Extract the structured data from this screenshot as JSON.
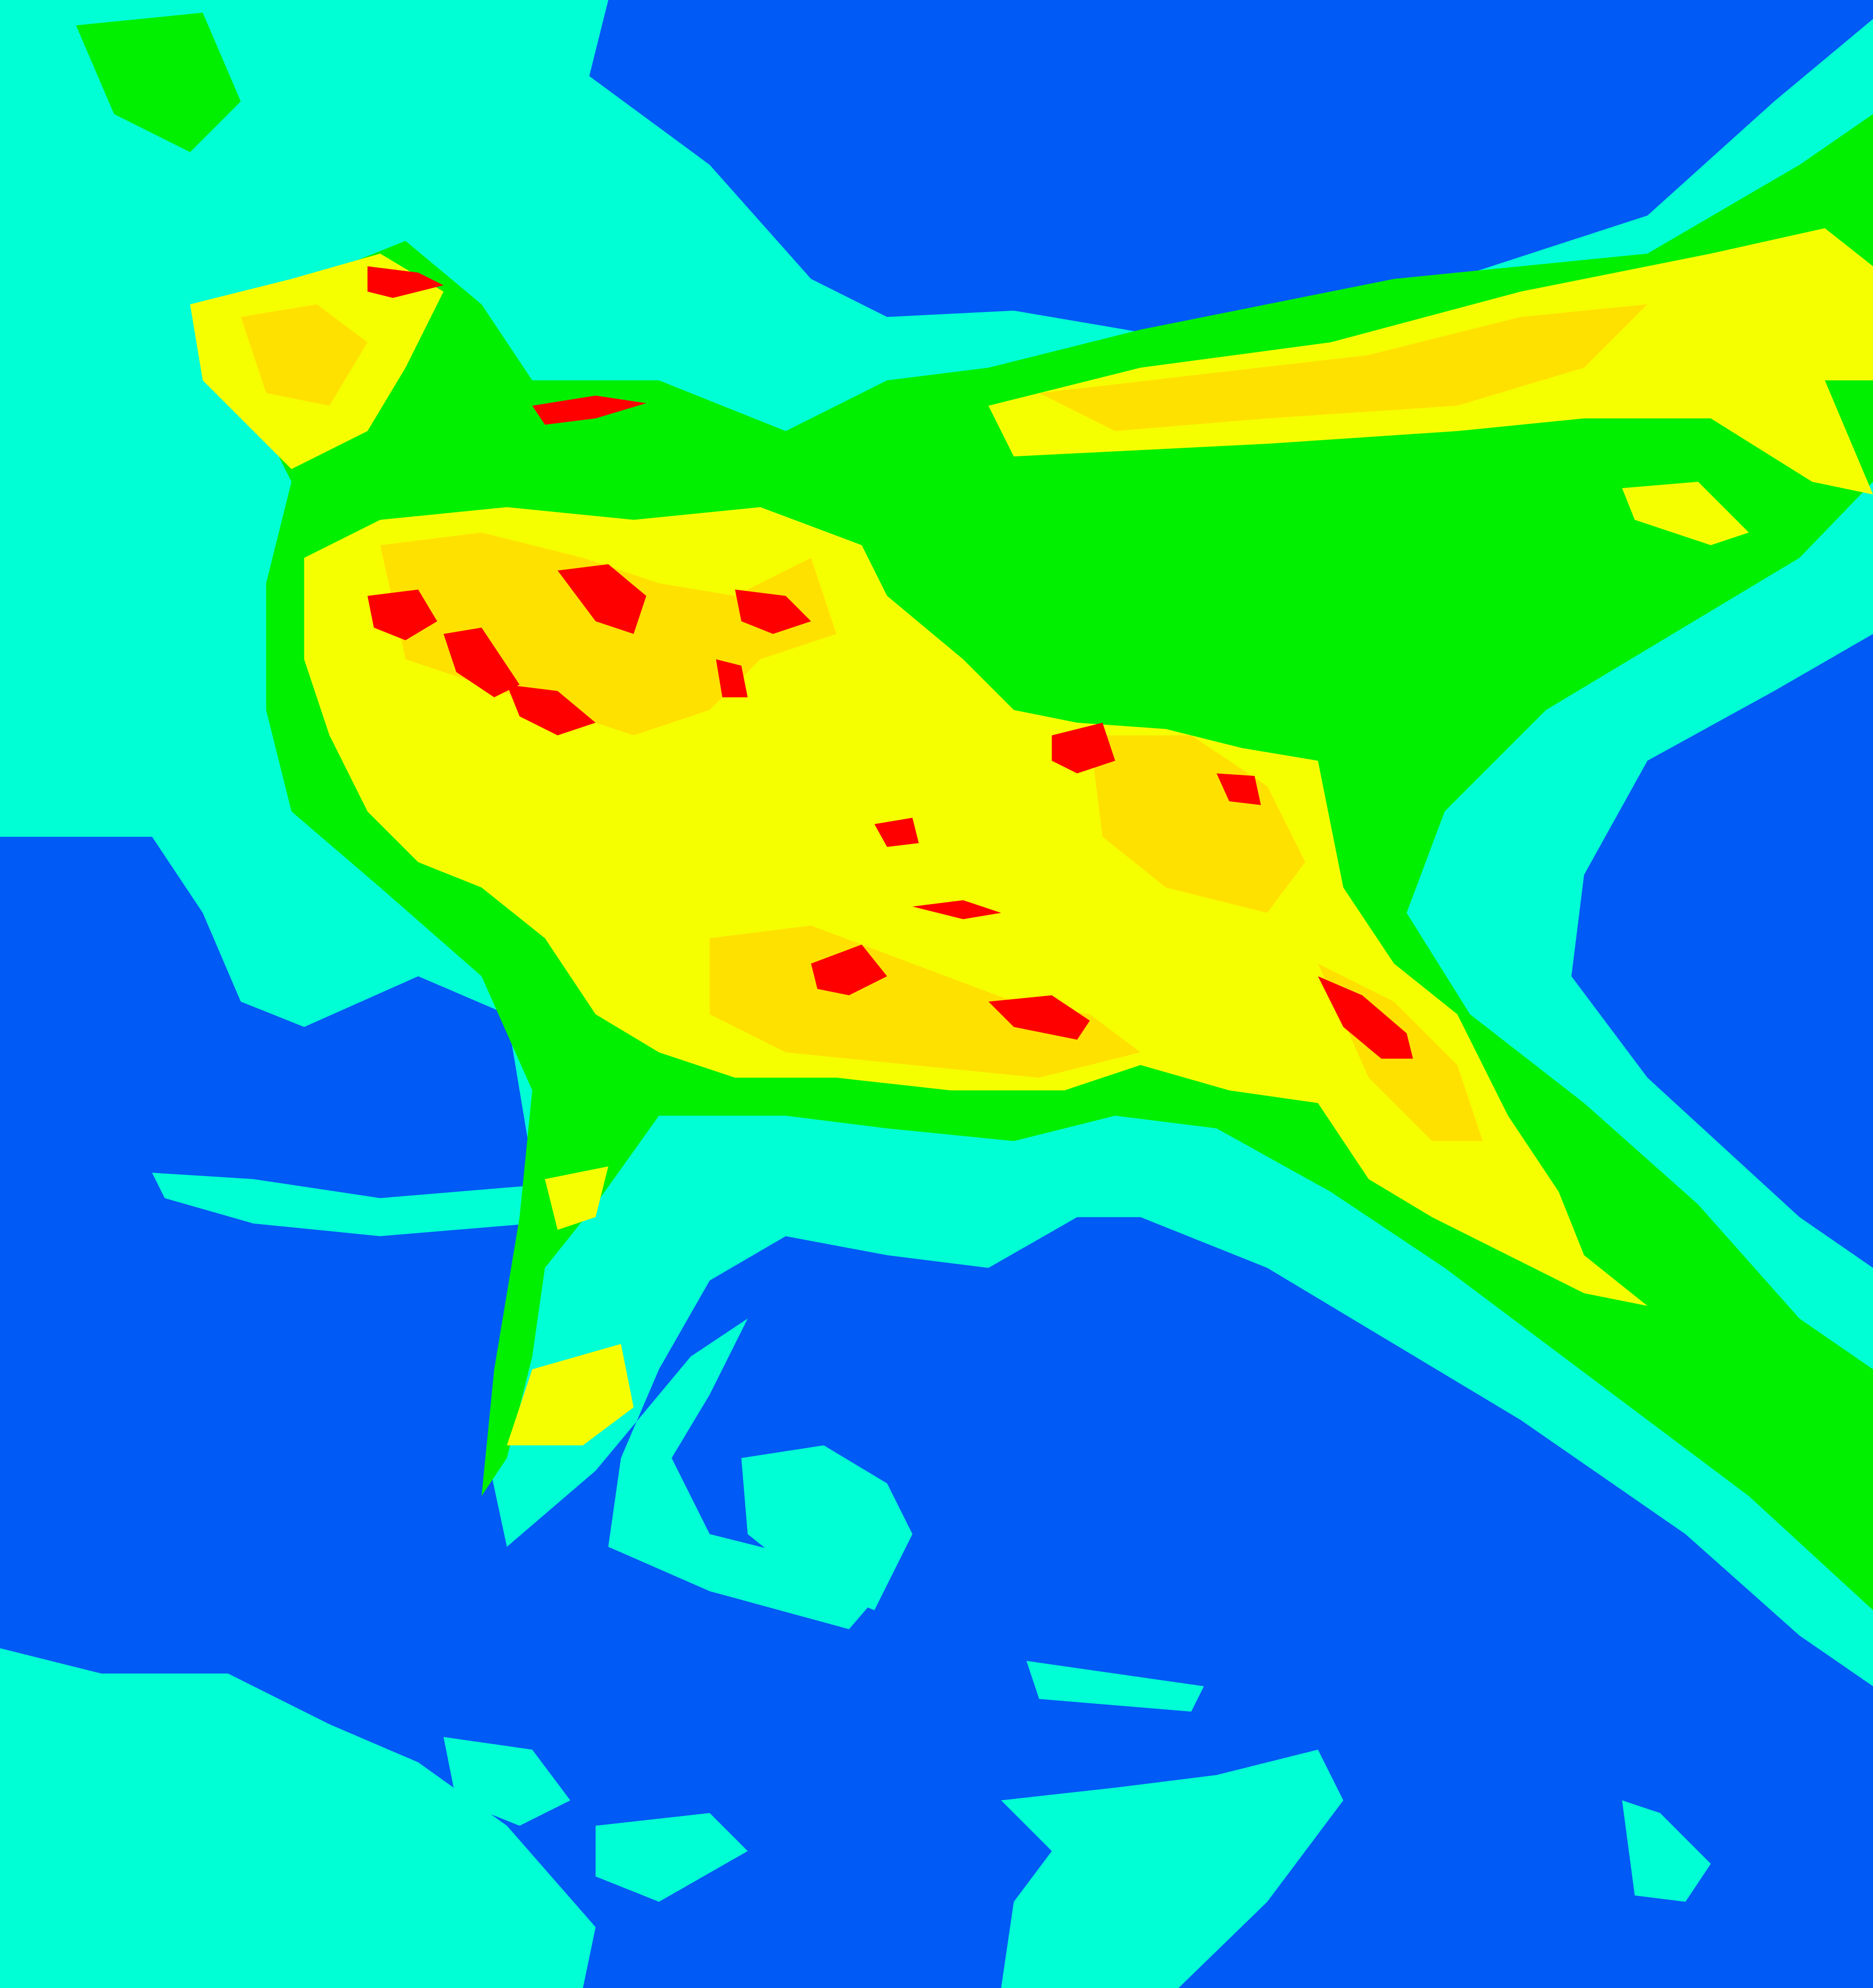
{
  "map": {
    "type": "classified raster",
    "legend_shown": false,
    "classes": [
      {
        "color": "#005AF5"
      },
      {
        "color": "#00FFD5"
      },
      {
        "color": "#00F000"
      },
      {
        "color": "#F5FF00"
      },
      {
        "color": "#FFE100"
      },
      {
        "color": "#FF0000"
      }
    ]
  }
}
